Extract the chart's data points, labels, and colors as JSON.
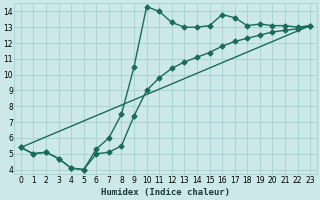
{
  "xlabel": "Humidex (Indice chaleur)",
  "bg_color": "#cce8e8",
  "grid_color": "#aad4d4",
  "line_color": "#1a6b5a",
  "xlim_min": -0.5,
  "xlim_max": 23.5,
  "ylim_min": 3.7,
  "ylim_max": 14.5,
  "xticks": [
    0,
    1,
    2,
    3,
    4,
    5,
    6,
    7,
    8,
    9,
    10,
    11,
    12,
    13,
    14,
    15,
    16,
    17,
    18,
    19,
    20,
    21,
    22,
    23
  ],
  "yticks": [
    4,
    5,
    6,
    7,
    8,
    9,
    10,
    11,
    12,
    13,
    14
  ],
  "line1_x": [
    0,
    1,
    2,
    3,
    4,
    5,
    6,
    7,
    8,
    9,
    10,
    11,
    12,
    13,
    14,
    15,
    16,
    17,
    18,
    19,
    20,
    21,
    22,
    23
  ],
  "line1_y": [
    5.4,
    5.0,
    5.1,
    4.7,
    4.1,
    4.0,
    5.0,
    5.1,
    5.5,
    7.4,
    9.0,
    9.8,
    10.4,
    10.8,
    11.1,
    11.4,
    11.8,
    12.1,
    12.3,
    12.5,
    12.7,
    12.8,
    12.9,
    13.1
  ],
  "line2_x": [
    0,
    1,
    2,
    3,
    4,
    5,
    6,
    7,
    8,
    9,
    10,
    11,
    12,
    13,
    14,
    15,
    16,
    17,
    18,
    19,
    20,
    21,
    22,
    23
  ],
  "line2_y": [
    5.4,
    5.0,
    5.1,
    4.7,
    4.1,
    4.0,
    5.3,
    6.0,
    7.5,
    10.5,
    14.3,
    14.0,
    13.3,
    13.0,
    13.0,
    13.1,
    13.8,
    13.6,
    13.1,
    13.2,
    13.1,
    13.1,
    13.0,
    13.1
  ],
  "line3_x": [
    0,
    23
  ],
  "line3_y": [
    5.4,
    13.1
  ],
  "marker": "D",
  "markersize": 2.5,
  "linewidth": 1.0,
  "tick_fontsize": 5.5,
  "xlabel_fontsize": 6.5
}
